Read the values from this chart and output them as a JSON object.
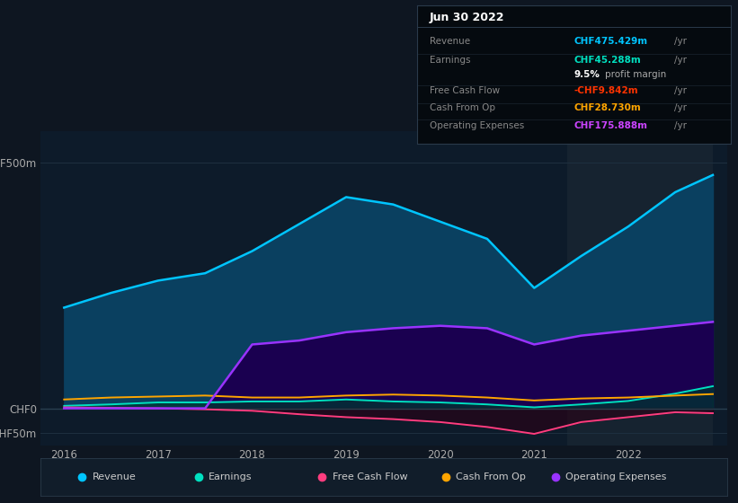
{
  "background_color": "#0e1621",
  "plot_bg_color": "#0d1b2a",
  "highlight_bg": "#162330",
  "years": [
    2016.0,
    2016.5,
    2017.0,
    2017.5,
    2018.0,
    2018.5,
    2019.0,
    2019.5,
    2020.0,
    2020.5,
    2021.0,
    2021.5,
    2022.0,
    2022.5,
    2022.9
  ],
  "revenue": [
    205,
    235,
    260,
    275,
    320,
    375,
    430,
    415,
    380,
    345,
    245,
    310,
    370,
    440,
    475
  ],
  "earnings": [
    5,
    8,
    12,
    12,
    14,
    14,
    18,
    14,
    12,
    8,
    2,
    8,
    15,
    30,
    45
  ],
  "free_cash_flow": [
    2,
    1,
    0,
    -2,
    -5,
    -12,
    -18,
    -22,
    -28,
    -38,
    -52,
    -28,
    -18,
    -8,
    -10
  ],
  "cash_from_op": [
    18,
    22,
    24,
    26,
    22,
    22,
    26,
    28,
    26,
    22,
    16,
    20,
    22,
    26,
    29
  ],
  "operating_expenses": [
    0,
    0,
    0,
    0,
    130,
    138,
    155,
    163,
    168,
    163,
    130,
    148,
    158,
    168,
    176
  ],
  "revenue_color": "#00c5ff",
  "earnings_color": "#00e0c0",
  "fcf_color": "#ff3d7f",
  "cfop_color": "#ffa500",
  "opex_color": "#9933ff",
  "revenue_fill": "#0a4060",
  "opex_fill": "#1a0050",
  "highlight_start": 2021.35,
  "highlight_end": 2022.9,
  "ylim": [
    -75,
    565
  ],
  "xlim": [
    2015.75,
    2023.05
  ],
  "xticks": [
    2016,
    2017,
    2018,
    2019,
    2020,
    2021,
    2022
  ],
  "ytick_positions": [
    -50,
    0,
    500
  ],
  "ytick_labels": [
    "-CHF50m",
    "CHF0",
    "CHF500m"
  ],
  "tooltip_title": "Jun 30 2022",
  "tooltip_rows": [
    {
      "label": "Revenue",
      "value": "CHF475.429m",
      "value_color": "#00c5ff",
      "suffix": " /yr"
    },
    {
      "label": "Earnings",
      "value": "CHF45.288m",
      "value_color": "#00e0c0",
      "suffix": " /yr"
    },
    {
      "label": "",
      "value": "9.5%",
      "value_color": "#ffffff",
      "suffix": " profit margin"
    },
    {
      "label": "Free Cash Flow",
      "value": "-CHF9.842m",
      "value_color": "#ff3300",
      "suffix": " /yr"
    },
    {
      "label": "Cash From Op",
      "value": "CHF28.730m",
      "value_color": "#ffa500",
      "suffix": " /yr"
    },
    {
      "label": "Operating Expenses",
      "value": "CHF175.888m",
      "value_color": "#cc44ff",
      "suffix": " /yr"
    }
  ],
  "legend": [
    {
      "label": "Revenue",
      "color": "#00c5ff"
    },
    {
      "label": "Earnings",
      "color": "#00e0c0"
    },
    {
      "label": "Free Cash Flow",
      "color": "#ff3d7f"
    },
    {
      "label": "Cash From Op",
      "color": "#ffa500"
    },
    {
      "label": "Operating Expenses",
      "color": "#9933ff"
    }
  ]
}
